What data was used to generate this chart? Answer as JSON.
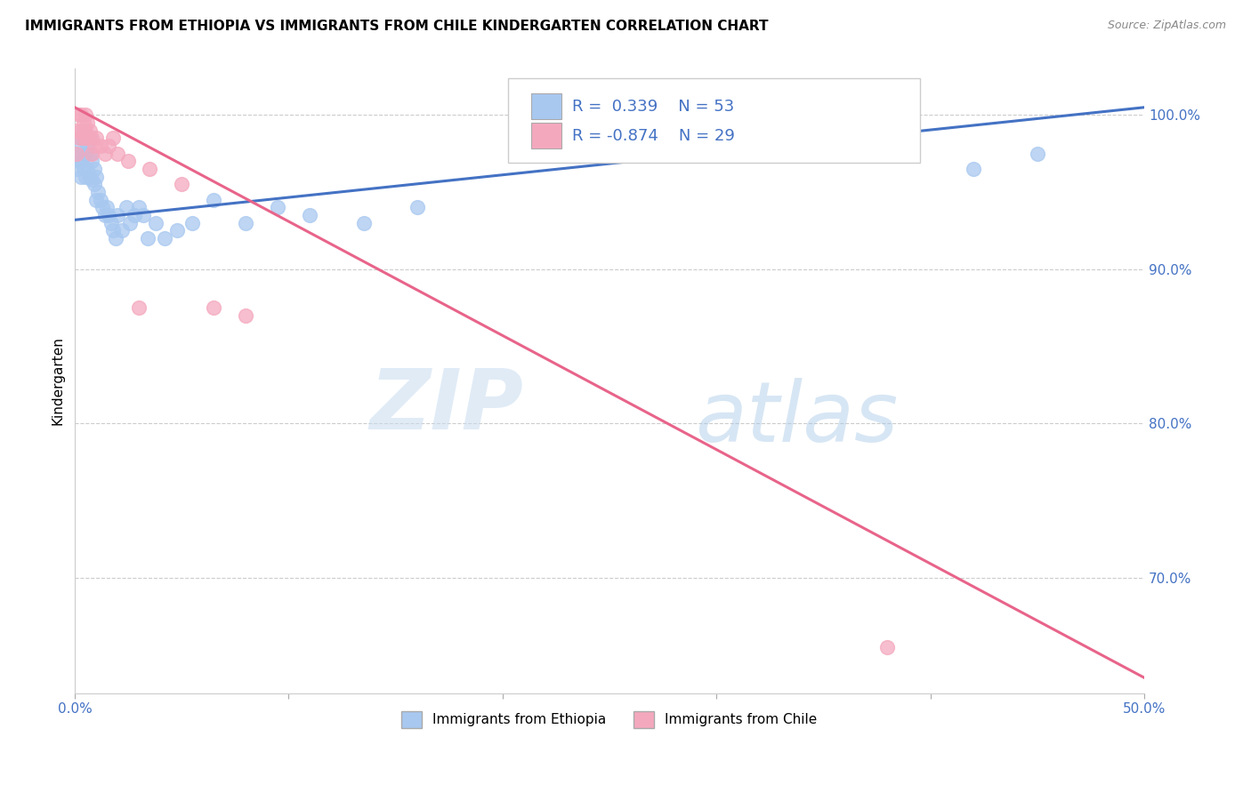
{
  "title": "IMMIGRANTS FROM ETHIOPIA VS IMMIGRANTS FROM CHILE KINDERGARTEN CORRELATION CHART",
  "source": "Source: ZipAtlas.com",
  "ylabel": "Kindergarten",
  "ylabel_right_ticks": [
    1.0,
    0.9,
    0.8,
    0.7
  ],
  "ylabel_right_labels": [
    "100.0%",
    "90.0%",
    "80.0%",
    "70.0%"
  ],
  "xmin": 0.0,
  "xmax": 0.5,
  "ymin": 0.625,
  "ymax": 1.03,
  "ethiopia_color": "#A8C8F0",
  "chile_color": "#F4A8BE",
  "ethiopia_R": 0.339,
  "ethiopia_N": 53,
  "chile_R": -0.874,
  "chile_N": 29,
  "ethiopia_line_color": "#4472C4",
  "chile_line_color": "#E8648A",
  "watermark_zip": "ZIP",
  "watermark_atlas": "atlas",
  "ethiopia_line_x0": 0.0,
  "ethiopia_line_y0": 0.932,
  "ethiopia_line_x1": 0.5,
  "ethiopia_line_y1": 1.005,
  "chile_line_x0": 0.0,
  "chile_line_y0": 1.005,
  "chile_line_x1": 0.5,
  "chile_line_y1": 0.635,
  "ethiopia_scatter_x": [
    0.001,
    0.001,
    0.002,
    0.002,
    0.003,
    0.003,
    0.003,
    0.004,
    0.004,
    0.004,
    0.005,
    0.005,
    0.005,
    0.006,
    0.006,
    0.007,
    0.007,
    0.007,
    0.008,
    0.008,
    0.009,
    0.009,
    0.01,
    0.01,
    0.011,
    0.012,
    0.013,
    0.014,
    0.015,
    0.016,
    0.017,
    0.018,
    0.019,
    0.02,
    0.022,
    0.024,
    0.026,
    0.028,
    0.03,
    0.032,
    0.034,
    0.038,
    0.042,
    0.048,
    0.055,
    0.065,
    0.08,
    0.095,
    0.11,
    0.135,
    0.16,
    0.42,
    0.45
  ],
  "ethiopia_scatter_y": [
    0.975,
    0.965,
    0.98,
    0.97,
    0.985,
    0.97,
    0.96,
    0.99,
    0.975,
    0.965,
    0.985,
    0.975,
    0.96,
    0.98,
    0.965,
    0.985,
    0.975,
    0.96,
    0.97,
    0.958,
    0.965,
    0.955,
    0.96,
    0.945,
    0.95,
    0.945,
    0.94,
    0.935,
    0.94,
    0.935,
    0.93,
    0.925,
    0.92,
    0.935,
    0.925,
    0.94,
    0.93,
    0.935,
    0.94,
    0.935,
    0.92,
    0.93,
    0.92,
    0.925,
    0.93,
    0.945,
    0.93,
    0.94,
    0.935,
    0.93,
    0.94,
    0.965,
    0.975
  ],
  "chile_scatter_x": [
    0.001,
    0.001,
    0.002,
    0.002,
    0.003,
    0.003,
    0.004,
    0.004,
    0.005,
    0.005,
    0.006,
    0.006,
    0.007,
    0.008,
    0.008,
    0.009,
    0.01,
    0.012,
    0.014,
    0.016,
    0.018,
    0.02,
    0.025,
    0.03,
    0.035,
    0.05,
    0.065,
    0.08,
    0.38
  ],
  "chile_scatter_y": [
    0.99,
    0.975,
    1.0,
    0.985,
    1.0,
    0.99,
    0.995,
    0.985,
    1.0,
    0.99,
    0.995,
    0.985,
    0.99,
    0.985,
    0.975,
    0.98,
    0.985,
    0.98,
    0.975,
    0.98,
    0.985,
    0.975,
    0.97,
    0.875,
    0.965,
    0.955,
    0.875,
    0.87,
    0.655
  ]
}
